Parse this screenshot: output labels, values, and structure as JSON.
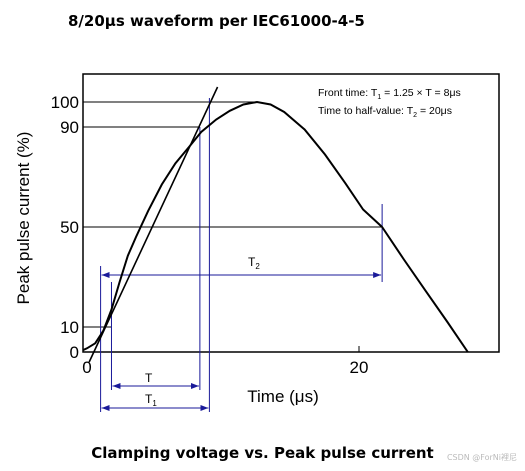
{
  "page": {
    "heading": "8/20μs waveform per IEC61000-4-5",
    "caption": "Clamping voltage vs. Peak pulse current",
    "watermark": "CSDN @ForNi裡尼"
  },
  "chart_data": {
    "type": "line",
    "title": "8/20μs waveform per IEC61000-4-5",
    "xlabel": "Time (μs)",
    "ylabel": "Peak pulse current (%)",
    "xlim": [
      0,
      30
    ],
    "ylim": [
      0,
      108
    ],
    "x_ticks": [
      "0",
      "20"
    ],
    "y_ticks": [
      "0",
      "10",
      "50",
      "90",
      "100"
    ],
    "grid": false,
    "legend_text": {
      "front_prefix": "Front time: T",
      "front_sub": "1",
      "front_suffix": " = 1.25 × T = 8μs",
      "half_prefix": "Time to half-value: T",
      "half_sub": "2",
      "half_suffix": " = 20μs"
    },
    "series": [
      {
        "x": [
          -0.6,
          0,
          0.6,
          1.2,
          1.8,
          2.4,
          3.0,
          3.6,
          4.5,
          5.5,
          6.5,
          7.5,
          8.4,
          9.5,
          10.5,
          11.5,
          12.5,
          13.5,
          14.5,
          16.0,
          17.5,
          19.0,
          20.3,
          21.7,
          23.3,
          24.9,
          26.5,
          28.0
        ],
        "y": [
          0,
          1.5,
          3.5,
          8.5,
          17,
          28,
          38.5,
          46,
          56.5,
          67,
          75.5,
          82,
          88,
          93,
          96.5,
          99,
          100,
          99,
          96,
          89,
          79,
          67.5,
          57,
          50,
          37,
          24.5,
          12,
          0
        ]
      }
    ],
    "front_line": {
      "x": [
        0.16,
        9.6
      ],
      "y": [
        -4,
        106
      ]
    },
    "reference_levels": [
      {
        "label": "100",
        "y": 100
      },
      {
        "label": "90",
        "y": 90
      },
      {
        "label": "50",
        "y": 50
      },
      {
        "label": "10",
        "y": 10
      }
    ],
    "markers": {
      "t10_x": 1.8,
      "t90_x": 8.3,
      "front_start_x": 1.0,
      "front_end_x": 9.0,
      "t1_origin_x": 1.0,
      "t50_x": 21.7
    },
    "dimension_labels": {
      "T": "T",
      "T1": "T",
      "T1_sub": "1",
      "T2": "T",
      "T2_sub": "2"
    },
    "colors": {
      "curve": "#000000",
      "dimension": "#1a1a99",
      "axis": "#000000"
    }
  }
}
